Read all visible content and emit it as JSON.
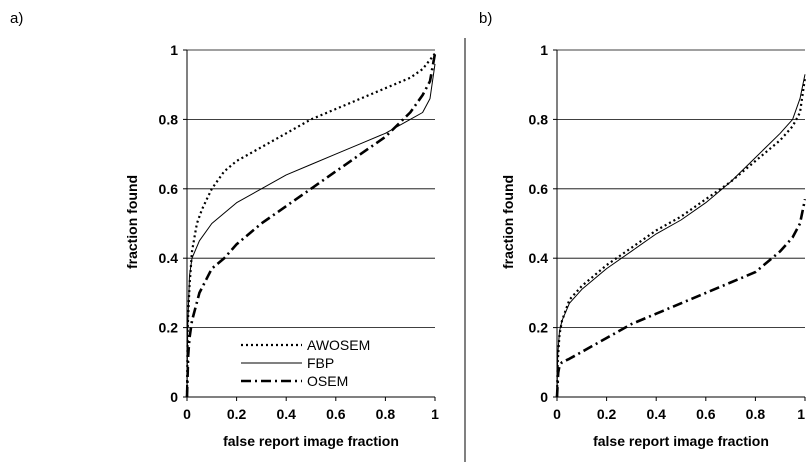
{
  "chart_data": [
    {
      "type": "line",
      "panel_label": "a)",
      "xlabel": "false report image fraction",
      "ylabel": "fraction found",
      "xlim": [
        0,
        1
      ],
      "ylim": [
        0,
        1
      ],
      "x_ticks": [
        "0",
        "0.2",
        "0.4",
        "0.6",
        "0.8",
        "1"
      ],
      "y_ticks": [
        "0",
        "0.2",
        "0.4",
        "0.6",
        "0.8",
        "1"
      ],
      "grid": "horizontal",
      "legend": {
        "placement": "bottom-right",
        "entries": [
          "AWOSEM",
          "FBP",
          "OSEM"
        ]
      },
      "series": [
        {
          "name": "AWOSEM",
          "style": "dotted",
          "x": [
            0,
            0.003,
            0.01,
            0.02,
            0.04,
            0.06,
            0.08,
            0.1,
            0.15,
            0.2,
            0.3,
            0.4,
            0.5,
            0.6,
            0.7,
            0.8,
            0.9,
            0.95,
            1.0
          ],
          "y": [
            0.0,
            0.2,
            0.32,
            0.42,
            0.5,
            0.54,
            0.57,
            0.6,
            0.65,
            0.68,
            0.72,
            0.76,
            0.8,
            0.83,
            0.86,
            0.89,
            0.92,
            0.945,
            0.99
          ]
        },
        {
          "name": "FBP",
          "style": "solid",
          "x": [
            0,
            0.003,
            0.01,
            0.02,
            0.05,
            0.1,
            0.15,
            0.2,
            0.3,
            0.4,
            0.5,
            0.6,
            0.7,
            0.8,
            0.9,
            0.95,
            0.98,
            1.0
          ],
          "y": [
            0.0,
            0.2,
            0.35,
            0.4,
            0.45,
            0.5,
            0.53,
            0.56,
            0.6,
            0.64,
            0.67,
            0.7,
            0.73,
            0.76,
            0.8,
            0.82,
            0.86,
            0.96
          ]
        },
        {
          "name": "OSEM",
          "style": "dash-dot",
          "x": [
            0,
            0.005,
            0.01,
            0.02,
            0.05,
            0.1,
            0.15,
            0.2,
            0.3,
            0.4,
            0.5,
            0.6,
            0.7,
            0.8,
            0.9,
            0.95,
            0.98,
            1.0
          ],
          "y": [
            0.0,
            0.12,
            0.17,
            0.22,
            0.3,
            0.37,
            0.4,
            0.44,
            0.5,
            0.55,
            0.6,
            0.65,
            0.7,
            0.75,
            0.82,
            0.87,
            0.91,
            0.99
          ]
        }
      ]
    },
    {
      "type": "line",
      "panel_label": "b)",
      "xlabel": "false report image fraction",
      "ylabel": "fraction found",
      "xlim": [
        0,
        1
      ],
      "ylim": [
        0,
        1
      ],
      "x_ticks": [
        "0",
        "0.2",
        "0.4",
        "0.6",
        "0.8",
        "1"
      ],
      "y_ticks": [
        "0",
        "0.2",
        "0.4",
        "0.6",
        "0.8",
        "1"
      ],
      "grid": "horizontal",
      "series": [
        {
          "name": "AWOSEM",
          "style": "dotted",
          "x": [
            0,
            0.003,
            0.01,
            0.02,
            0.05,
            0.1,
            0.15,
            0.2,
            0.3,
            0.4,
            0.5,
            0.6,
            0.7,
            0.8,
            0.9,
            0.95,
            0.98,
            1.0
          ],
          "y": [
            0.0,
            0.1,
            0.18,
            0.22,
            0.28,
            0.32,
            0.35,
            0.38,
            0.43,
            0.48,
            0.52,
            0.57,
            0.62,
            0.68,
            0.74,
            0.78,
            0.82,
            0.92
          ]
        },
        {
          "name": "FBP",
          "style": "solid",
          "x": [
            0,
            0.003,
            0.01,
            0.02,
            0.05,
            0.1,
            0.15,
            0.2,
            0.3,
            0.4,
            0.5,
            0.6,
            0.7,
            0.8,
            0.9,
            0.95,
            0.98,
            1.0
          ],
          "y": [
            0.0,
            0.12,
            0.19,
            0.22,
            0.27,
            0.31,
            0.34,
            0.37,
            0.42,
            0.47,
            0.51,
            0.56,
            0.62,
            0.69,
            0.76,
            0.8,
            0.86,
            0.93
          ]
        },
        {
          "name": "OSEM",
          "style": "dash-dot",
          "x": [
            0,
            0.005,
            0.01,
            0.02,
            0.05,
            0.1,
            0.2,
            0.3,
            0.4,
            0.5,
            0.6,
            0.7,
            0.8,
            0.9,
            0.95,
            0.98,
            1.0
          ],
          "y": [
            0.0,
            0.07,
            0.09,
            0.1,
            0.11,
            0.13,
            0.17,
            0.21,
            0.24,
            0.27,
            0.3,
            0.33,
            0.36,
            0.42,
            0.46,
            0.5,
            0.57
          ]
        }
      ]
    }
  ]
}
